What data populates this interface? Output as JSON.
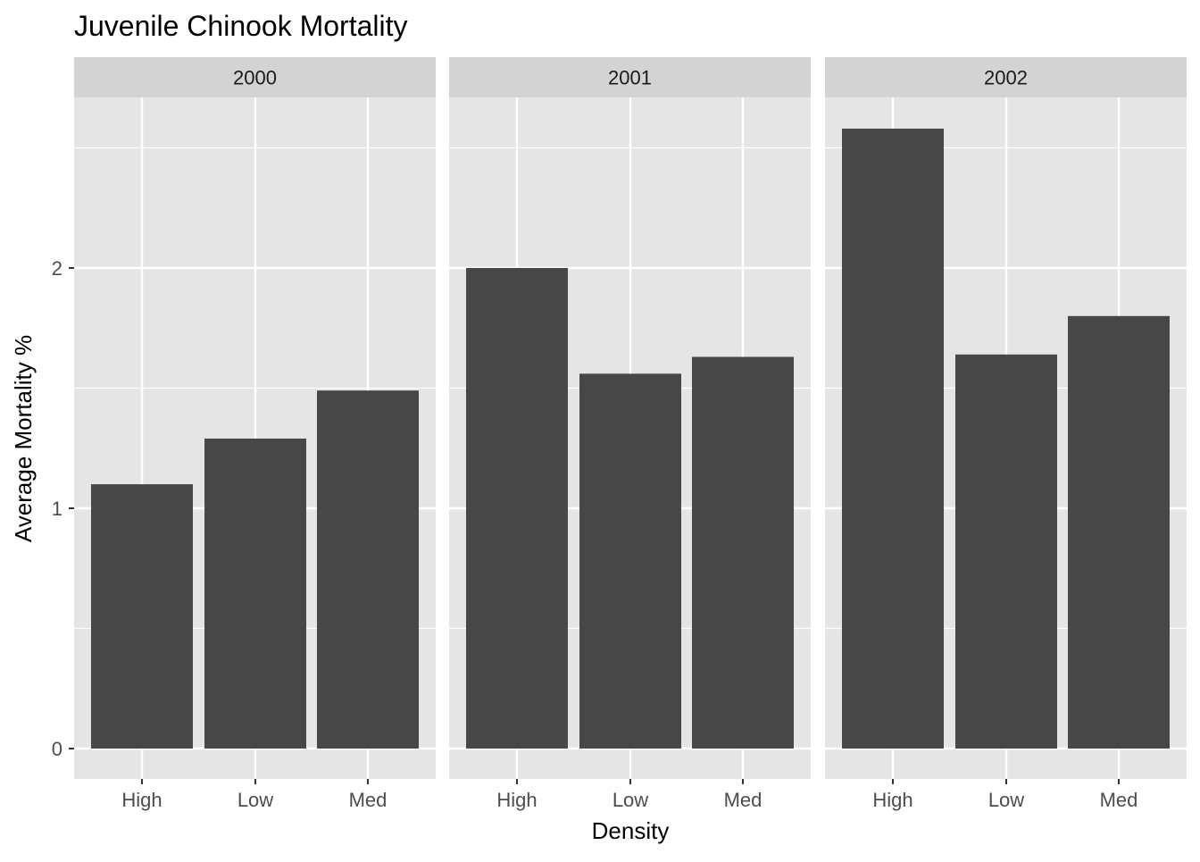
{
  "chart_data": {
    "type": "bar",
    "title": "Juvenile Chinook Mortality",
    "xlabel": "Density",
    "ylabel": "Average Mortality %",
    "categories": [
      "High",
      "Low",
      "Med"
    ],
    "panels": [
      {
        "name": "2000",
        "values": [
          1.1,
          1.29,
          1.49
        ]
      },
      {
        "name": "2001",
        "values": [
          2.0,
          1.56,
          1.63
        ]
      },
      {
        "name": "2002",
        "values": [
          2.58,
          1.64,
          1.8
        ]
      }
    ],
    "yticks": [
      0,
      1,
      2
    ],
    "ytick_labels": [
      "0",
      "1",
      "2"
    ],
    "ylim": [
      -0.12,
      2.7
    ],
    "grid": true,
    "colors": {
      "bar": "#474747",
      "panel_bg": "#e5e5e5",
      "strip_bg": "#d3d3d3",
      "grid": "#ffffff",
      "axis_text": "#4d4d4d",
      "title_text": "#000000"
    }
  }
}
